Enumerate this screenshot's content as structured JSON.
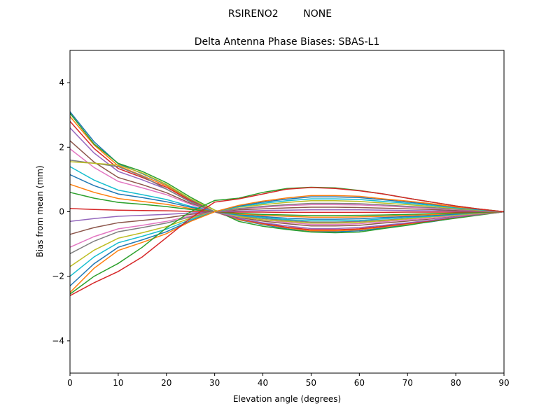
{
  "chart_data": {
    "type": "line",
    "suptitle": "RSIRENO2        NONE",
    "title": "Delta Antenna Phase Biases: SBAS-L1",
    "xlabel": "Elevation angle (degrees)",
    "ylabel": "Bias from mean (mm)",
    "xlim": [
      0,
      90
    ],
    "ylim": [
      -5,
      5
    ],
    "xticks": [
      0,
      10,
      20,
      30,
      40,
      50,
      60,
      70,
      80,
      90
    ],
    "yticks": [
      -4,
      -2,
      0,
      2,
      4
    ],
    "ytick_labels": [
      "−4",
      "−2",
      "0",
      "2",
      "4"
    ],
    "grid": false,
    "colors": [
      "#1f77b4",
      "#ff7f0e",
      "#2ca02c",
      "#d62728",
      "#9467bd",
      "#8c564b",
      "#e377c2",
      "#7f7f7f",
      "#bcbd22",
      "#17becf"
    ],
    "x": [
      0,
      5,
      10,
      15,
      20,
      25,
      30,
      35,
      40,
      45,
      50,
      55,
      60,
      65,
      70,
      75,
      80,
      85,
      90
    ],
    "series": [
      {
        "values": [
          3.1,
          2.17,
          1.49,
          1.18,
          0.84,
          0.37,
          0,
          -0.25,
          -0.4,
          -0.53,
          -0.62,
          -0.62,
          -0.59,
          -0.5,
          -0.4,
          -0.31,
          -0.19,
          -0.09,
          0
        ]
      },
      {
        "values": [
          2.95,
          2.07,
          1.42,
          1.12,
          0.8,
          0.35,
          0,
          -0.24,
          -0.38,
          -0.5,
          -0.59,
          -0.59,
          -0.56,
          -0.47,
          -0.38,
          -0.3,
          -0.18,
          -0.09,
          0
        ]
      },
      {
        "values": [
          3.05,
          2.1,
          1.5,
          1.25,
          0.9,
          0.45,
          0.05,
          -0.3,
          -0.45,
          -0.55,
          -0.63,
          -0.65,
          -0.63,
          -0.52,
          -0.42,
          -0.3,
          -0.2,
          -0.1,
          0
        ]
      },
      {
        "values": [
          2.8,
          1.96,
          1.34,
          1.06,
          0.76,
          0.34,
          0,
          -0.22,
          -0.36,
          -0.48,
          -0.56,
          -0.56,
          -0.53,
          -0.45,
          -0.36,
          -0.28,
          -0.17,
          -0.08,
          0
        ]
      },
      {
        "values": [
          2.6,
          1.82,
          1.25,
          0.99,
          0.7,
          0.31,
          0,
          -0.21,
          -0.34,
          -0.44,
          -0.52,
          -0.52,
          -0.49,
          -0.42,
          -0.34,
          -0.26,
          -0.16,
          -0.08,
          0
        ]
      },
      {
        "values": [
          2.2,
          1.54,
          1.06,
          0.84,
          0.59,
          0.26,
          0,
          -0.18,
          -0.29,
          -0.37,
          -0.44,
          -0.44,
          -0.42,
          -0.35,
          -0.29,
          -0.22,
          -0.13,
          -0.07,
          0
        ]
      },
      {
        "values": [
          1.95,
          1.37,
          0.94,
          0.74,
          0.53,
          0.23,
          0,
          -0.16,
          -0.25,
          -0.33,
          -0.39,
          -0.39,
          -0.37,
          -0.31,
          -0.25,
          -0.2,
          -0.12,
          -0.06,
          0
        ]
      },
      {
        "values": [
          1.6,
          1.5,
          1.4,
          1.1,
          0.7,
          0.3,
          0,
          -0.13,
          -0.21,
          -0.27,
          -0.32,
          -0.32,
          -0.3,
          -0.26,
          -0.21,
          -0.16,
          -0.1,
          -0.05,
          0
        ]
      },
      {
        "values": [
          1.55,
          1.5,
          1.45,
          1.2,
          0.85,
          0.4,
          0.05,
          -0.15,
          -0.25,
          -0.3,
          -0.35,
          -0.35,
          -0.33,
          -0.28,
          -0.22,
          -0.16,
          -0.1,
          -0.05,
          0
        ]
      },
      {
        "values": [
          1.4,
          0.98,
          0.67,
          0.53,
          0.38,
          0.17,
          0,
          -0.11,
          -0.18,
          -0.24,
          -0.28,
          -0.28,
          -0.27,
          -0.22,
          -0.18,
          -0.14,
          -0.08,
          -0.04,
          0
        ]
      },
      {
        "values": [
          1.15,
          0.81,
          0.55,
          0.44,
          0.31,
          0.14,
          0,
          -0.09,
          -0.15,
          -0.2,
          -0.23,
          -0.23,
          -0.22,
          -0.18,
          -0.15,
          -0.12,
          -0.07,
          -0.03,
          0
        ]
      },
      {
        "values": [
          0.85,
          0.6,
          0.41,
          0.32,
          0.23,
          0.1,
          0,
          -0.07,
          -0.11,
          -0.14,
          -0.17,
          -0.17,
          -0.16,
          -0.14,
          -0.11,
          -0.09,
          -0.05,
          -0.03,
          0
        ]
      },
      {
        "values": [
          0.6,
          0.42,
          0.29,
          0.23,
          0.16,
          0.07,
          0,
          -0.05,
          -0.08,
          -0.1,
          -0.12,
          -0.12,
          -0.11,
          -0.1,
          -0.08,
          -0.06,
          -0.04,
          -0.02,
          0
        ]
      },
      {
        "values": [
          0.1,
          0.07,
          0.05,
          0.04,
          0.03,
          0.01,
          0,
          -0.01,
          -0.01,
          -0.02,
          -0.02,
          -0.02,
          -0.02,
          -0.02,
          -0.01,
          -0.01,
          -0.01,
          0,
          0
        ]
      },
      {
        "values": [
          -0.3,
          -0.21,
          -0.14,
          -0.11,
          -0.08,
          -0.04,
          0,
          0.02,
          0.04,
          0.05,
          0.06,
          0.06,
          0.06,
          0.05,
          0.04,
          0.03,
          0.02,
          0.01,
          0
        ]
      },
      {
        "values": [
          -0.7,
          -0.49,
          -0.34,
          -0.27,
          -0.19,
          -0.08,
          0,
          0.06,
          0.09,
          0.12,
          0.14,
          0.14,
          0.13,
          0.11,
          0.09,
          0.07,
          0.04,
          0.02,
          0
        ]
      },
      {
        "values": [
          -1.1,
          -0.77,
          -0.53,
          -0.42,
          -0.3,
          -0.13,
          0,
          0.09,
          0.14,
          0.19,
          0.22,
          0.22,
          0.21,
          0.18,
          0.14,
          0.11,
          0.07,
          0.03,
          0
        ]
      },
      {
        "values": [
          -1.3,
          -0.91,
          -0.62,
          -0.49,
          -0.35,
          -0.16,
          0,
          0.1,
          0.17,
          0.22,
          0.26,
          0.26,
          0.25,
          0.21,
          0.17,
          0.13,
          0.08,
          0.04,
          0
        ]
      },
      {
        "values": [
          -1.7,
          -1.19,
          -0.82,
          -0.65,
          -0.46,
          -0.2,
          0,
          0.14,
          0.22,
          0.29,
          0.34,
          0.34,
          0.32,
          0.27,
          0.22,
          0.17,
          0.1,
          0.05,
          0
        ]
      },
      {
        "values": [
          -2,
          -1.4,
          -0.96,
          -0.76,
          -0.54,
          -0.24,
          0,
          0.16,
          0.26,
          0.34,
          0.4,
          0.4,
          0.38,
          0.32,
          0.26,
          0.2,
          0.12,
          0.06,
          0
        ]
      },
      {
        "values": [
          -2.3,
          -1.61,
          -1.1,
          -0.87,
          -0.62,
          -0.28,
          0,
          0.18,
          0.3,
          0.39,
          0.46,
          0.46,
          0.44,
          0.37,
          0.3,
          0.23,
          0.14,
          0.07,
          0
        ]
      },
      {
        "values": [
          -2.5,
          -1.75,
          -1.2,
          -0.95,
          -0.68,
          -0.3,
          0,
          0.2,
          0.33,
          0.43,
          0.5,
          0.5,
          0.48,
          0.4,
          0.33,
          0.25,
          0.15,
          0.08,
          0
        ]
      },
      {
        "values": [
          -2.55,
          -2.0,
          -1.6,
          -1.1,
          -0.5,
          0,
          0.35,
          0.42,
          0.6,
          0.72,
          0.76,
          0.74,
          0.66,
          0.55,
          0.42,
          0.3,
          0.18,
          0.08,
          0
        ]
      },
      {
        "values": [
          -2.6,
          -2.2,
          -1.85,
          -1.4,
          -0.8,
          -0.2,
          0.3,
          0.4,
          0.55,
          0.7,
          0.75,
          0.72,
          0.65,
          0.55,
          0.42,
          0.3,
          0.18,
          0.08,
          0
        ]
      }
    ]
  }
}
